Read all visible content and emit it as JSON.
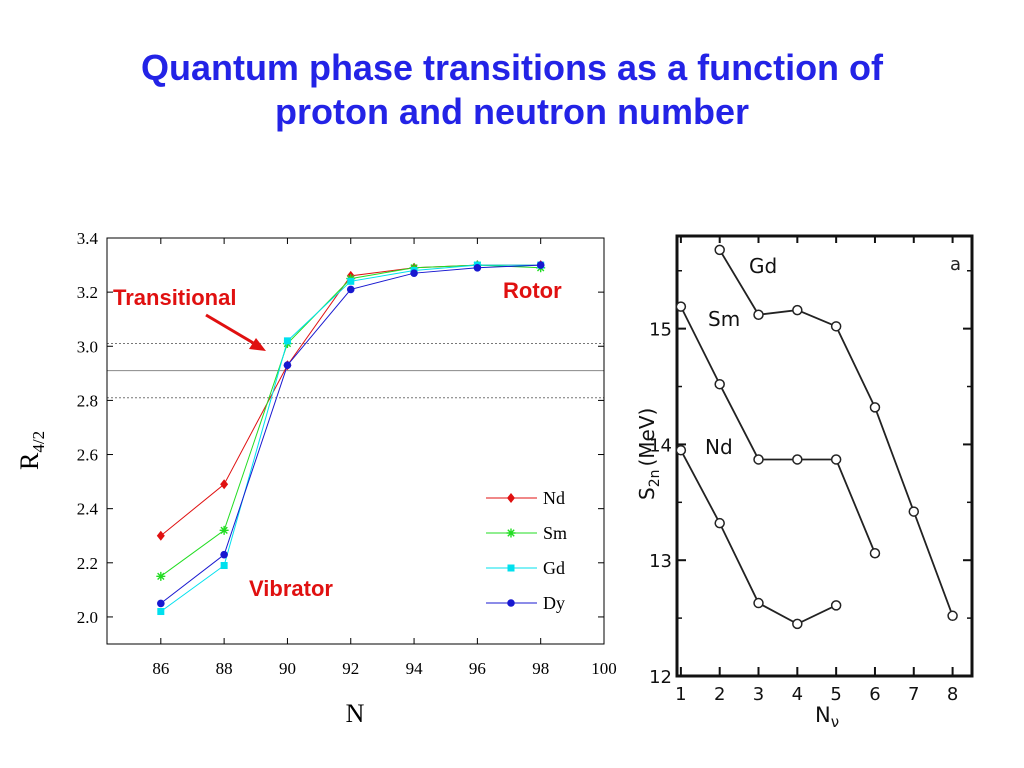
{
  "title_line1": "Quantum phase transitions as a function of",
  "title_line2": "proton and neutron number",
  "chart_data": [
    {
      "type": "line",
      "xlabel": "N",
      "ylabel_main": "R",
      "ylabel_sub": "4/2",
      "xlim": [
        84.3,
        100
      ],
      "ylim": [
        1.9,
        3.4
      ],
      "xticks": [
        86,
        88,
        90,
        92,
        94,
        96,
        98,
        100
      ],
      "xtick_labels": [
        "86",
        "88",
        "90",
        "92",
        "94",
        "96",
        "98",
        "100"
      ],
      "yticks": [
        2.0,
        2.2,
        2.4,
        2.6,
        2.8,
        3.0,
        3.2,
        3.4
      ],
      "ytick_labels": [
        "2.0",
        "2.2",
        "2.4",
        "2.6",
        "2.8",
        "3.0",
        "3.2",
        "3.4"
      ],
      "hlines": [
        {
          "y": 3.01,
          "style": "dotted"
        },
        {
          "y": 2.91,
          "style": "solid"
        },
        {
          "y": 2.81,
          "style": "dotted"
        }
      ],
      "legend_position": "lower-right",
      "x": [
        86,
        88,
        90,
        92,
        94,
        96,
        98
      ],
      "series": [
        {
          "name": "Nd",
          "values": [
            2.3,
            2.49,
            2.93,
            3.26,
            3.29,
            3.3,
            3.3
          ],
          "color": "#e01010",
          "marker": "diamond"
        },
        {
          "name": "Sm",
          "values": [
            2.15,
            2.32,
            3.01,
            3.25,
            3.29,
            3.3,
            3.29
          ],
          "color": "#22dd22",
          "marker": "asterisk"
        },
        {
          "name": "Gd",
          "values": [
            2.02,
            2.19,
            3.02,
            3.24,
            3.28,
            3.3,
            3.3
          ],
          "color": "#00e0ee",
          "marker": "square"
        },
        {
          "name": "Dy",
          "values": [
            2.05,
            2.23,
            2.93,
            3.21,
            3.27,
            3.29,
            3.3
          ],
          "color": "#1818d0",
          "marker": "circle"
        }
      ],
      "annotations": [
        {
          "text": "Transitional",
          "color": "#e01010"
        },
        {
          "text": "Rotor",
          "color": "#e01010"
        },
        {
          "text": "Vibrator",
          "color": "#e01010"
        }
      ]
    },
    {
      "type": "line",
      "xlabel_main": "N",
      "xlabel_sub": "ν",
      "ylabel_main": "S",
      "ylabel_sub": "2n",
      "ylabel_unit": "(MeV)",
      "panel_label": "a",
      "xlim": [
        0.9,
        8.5
      ],
      "ylim": [
        12,
        15.8
      ],
      "xticks": [
        1,
        2,
        3,
        4,
        5,
        6,
        7,
        8
      ],
      "xtick_labels": [
        "1",
        "2",
        "3",
        "4",
        "5",
        "6",
        "7",
        "8"
      ],
      "yticks": [
        12,
        13,
        14,
        15
      ],
      "ytick_labels": [
        "12",
        "13",
        "14",
        "15"
      ],
      "series": [
        {
          "name": "Gd",
          "x": [
            2,
            3,
            4,
            5,
            6,
            7,
            8
          ],
          "values": [
            15.68,
            15.12,
            15.16,
            15.02,
            14.32,
            13.42,
            12.52
          ]
        },
        {
          "name": "Sm",
          "x": [
            1,
            2,
            3,
            4,
            5,
            6
          ],
          "values": [
            15.19,
            14.52,
            13.87,
            13.87,
            13.87,
            13.06
          ]
        },
        {
          "name": "Nd",
          "x": [
            1,
            2,
            3,
            4,
            5
          ],
          "values": [
            13.95,
            13.32,
            12.63,
            12.45,
            12.61
          ]
        }
      ]
    }
  ]
}
